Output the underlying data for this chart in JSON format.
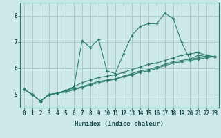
{
  "xlabel": "Humidex (Indice chaleur)",
  "ylabel": "",
  "background_color": "#cce8e8",
  "grid_color": "#aacccc",
  "line_color": "#2d7d6e",
  "marker_color": "#2d7d6e",
  "xlim": [
    -0.5,
    23.5
  ],
  "ylim": [
    4.5,
    8.5
  ],
  "yticks": [
    5,
    6,
    7,
    8
  ],
  "xticks": [
    0,
    1,
    2,
    3,
    4,
    5,
    6,
    7,
    8,
    9,
    10,
    11,
    12,
    13,
    14,
    15,
    16,
    17,
    18,
    19,
    20,
    21,
    22,
    23
  ],
  "series": [
    [
      5.2,
      5.0,
      4.75,
      5.0,
      5.05,
      5.15,
      5.25,
      7.05,
      6.8,
      7.1,
      5.9,
      5.8,
      6.55,
      7.25,
      7.6,
      7.7,
      7.7,
      8.1,
      7.9,
      7.0,
      6.35,
      6.5,
      6.45,
      6.45
    ],
    [
      5.2,
      5.0,
      4.75,
      5.0,
      5.05,
      5.15,
      5.3,
      5.45,
      5.55,
      5.65,
      5.7,
      5.75,
      5.85,
      5.95,
      6.05,
      6.15,
      6.2,
      6.3,
      6.4,
      6.5,
      6.55,
      6.6,
      6.5,
      6.45
    ],
    [
      5.2,
      5.0,
      4.75,
      5.0,
      5.05,
      5.1,
      5.2,
      5.3,
      5.4,
      5.5,
      5.55,
      5.6,
      5.7,
      5.8,
      5.9,
      5.95,
      6.05,
      6.15,
      6.25,
      6.3,
      6.35,
      6.4,
      6.45,
      6.45
    ],
    [
      5.2,
      5.0,
      4.75,
      5.0,
      5.05,
      5.1,
      5.18,
      5.27,
      5.36,
      5.45,
      5.52,
      5.58,
      5.68,
      5.75,
      5.85,
      5.9,
      6.0,
      6.1,
      6.2,
      6.25,
      6.3,
      6.35,
      6.4,
      6.45
    ]
  ]
}
